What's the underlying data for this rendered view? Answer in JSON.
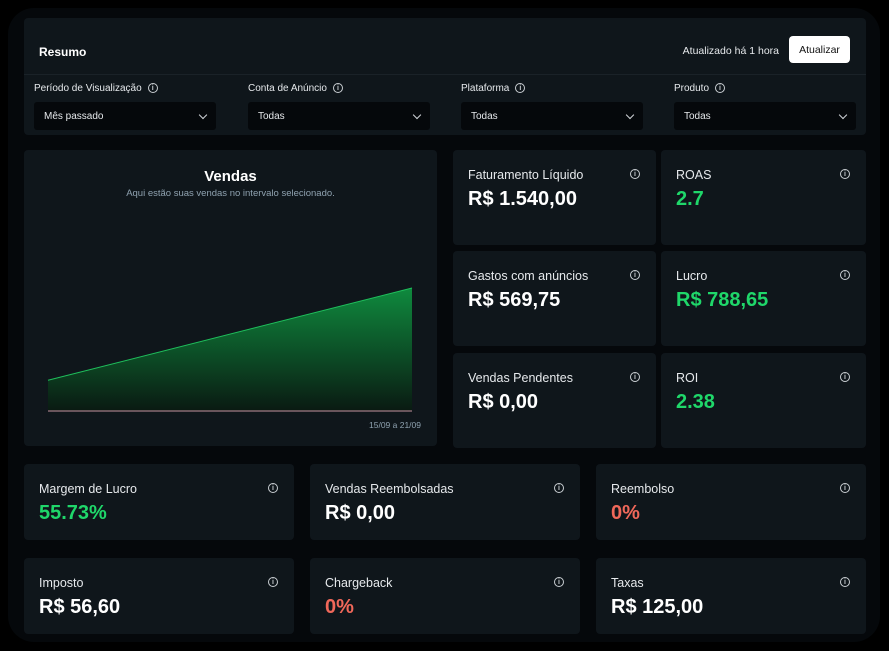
{
  "header": {
    "title": "Resumo",
    "updated": "Atualizado há 1 hora",
    "refresh_label": "Atualizar"
  },
  "filters": [
    {
      "label": "Período de Visualização",
      "value": "Mês passado"
    },
    {
      "label": "Conta de Anúncio",
      "value": "Todas"
    },
    {
      "label": "Plataforma",
      "value": "Todas"
    },
    {
      "label": "Produto",
      "value": "Todas"
    }
  ],
  "chart": {
    "title": "Vendas",
    "subtitle": "Aqui estão suas vendas no intervalo selecionado.",
    "range": "15/09 a 21/09"
  },
  "chart_data": {
    "type": "area",
    "series": [
      {
        "values": [
          0.25,
          1.0
        ]
      }
    ],
    "ylim": [
      0,
      1.0
    ],
    "grid": false,
    "colors": {
      "fill_top": "#0f8a3e",
      "fill_bottom": "#0a1a12",
      "line": "#1fbf5c",
      "baseline": "#a07a85"
    }
  },
  "metrics": [
    {
      "label": "Faturamento Líquido",
      "value": "R$ 1.540,00",
      "tone": "white"
    },
    {
      "label": "ROAS",
      "value": "2.7",
      "tone": "green"
    },
    {
      "label": "Gastos com anúncios",
      "value": "R$ 569,75",
      "tone": "white"
    },
    {
      "label": "Lucro",
      "value": "R$ 788,65",
      "tone": "green"
    },
    {
      "label": "Vendas Pendentes",
      "value": "R$ 0,00",
      "tone": "white"
    },
    {
      "label": "ROI",
      "value": "2.38",
      "tone": "green"
    },
    {
      "label": "Margem de Lucro",
      "value": "55.73%",
      "tone": "green"
    },
    {
      "label": "Vendas Reembolsadas",
      "value": "R$ 0,00",
      "tone": "white"
    },
    {
      "label": "Reembolso",
      "value": "0%",
      "tone": "red"
    },
    {
      "label": "Imposto",
      "value": "R$ 56,60",
      "tone": "white"
    },
    {
      "label": "Chargeback",
      "value": "0%",
      "tone": "red"
    },
    {
      "label": "Taxas",
      "value": "R$ 125,00",
      "tone": "white"
    }
  ],
  "icons": {
    "info": "info-icon",
    "dropdown": "chevron-down-icon"
  }
}
